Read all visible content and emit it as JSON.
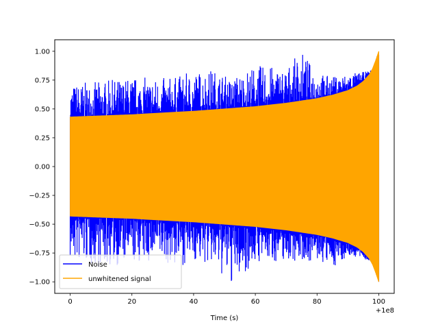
{
  "chart_data": {
    "type": "line",
    "title": "",
    "xlabel": "Time (s)",
    "ylabel": "",
    "x_offset_label": "+1e8",
    "xlim": [
      -5,
      105
    ],
    "ylim": [
      -1.1,
      1.1
    ],
    "x_ticks": [
      0,
      20,
      40,
      60,
      80,
      100
    ],
    "x_tick_labels": [
      "0",
      "20",
      "40",
      "60",
      "80",
      "100"
    ],
    "y_ticks": [
      -1.0,
      -0.75,
      -0.5,
      -0.25,
      0.0,
      0.25,
      0.5,
      0.75,
      1.0
    ],
    "y_tick_labels": [
      "−1.00",
      "−0.75",
      "−0.50",
      "−0.25",
      "0.00",
      "0.25",
      "0.50",
      "0.75",
      "1.00"
    ],
    "grid": false,
    "legend_position": "lower-left",
    "series": [
      {
        "name": "Noise",
        "color": "#0000ff",
        "x": [
          0,
          10,
          20,
          30,
          34,
          40,
          46,
          52,
          60,
          70,
          75,
          80,
          85,
          90,
          95,
          100
        ],
        "upper": [
          0.72,
          0.74,
          0.78,
          0.77,
          0.78,
          0.83,
          0.85,
          0.77,
          0.88,
          0.86,
          1.0,
          0.82,
          0.78,
          0.81,
          0.82,
          0.85
        ],
        "lower": [
          -0.84,
          -0.88,
          -0.85,
          -0.83,
          -0.88,
          -0.82,
          -0.87,
          -1.04,
          -0.84,
          -0.82,
          -0.82,
          -0.83,
          -0.88,
          -0.78,
          -0.8,
          -0.85
        ]
      },
      {
        "name": "unwhitened signal",
        "color": "#ffa500",
        "x": [
          0,
          10,
          20,
          30,
          40,
          50,
          60,
          70,
          75,
          80,
          85,
          90,
          93,
          95,
          97,
          98,
          99,
          100
        ],
        "envelope": [
          0.43,
          0.44,
          0.45,
          0.465,
          0.48,
          0.5,
          0.52,
          0.55,
          0.57,
          0.59,
          0.62,
          0.66,
          0.7,
          0.74,
          0.8,
          0.85,
          0.92,
          1.0
        ]
      }
    ]
  }
}
